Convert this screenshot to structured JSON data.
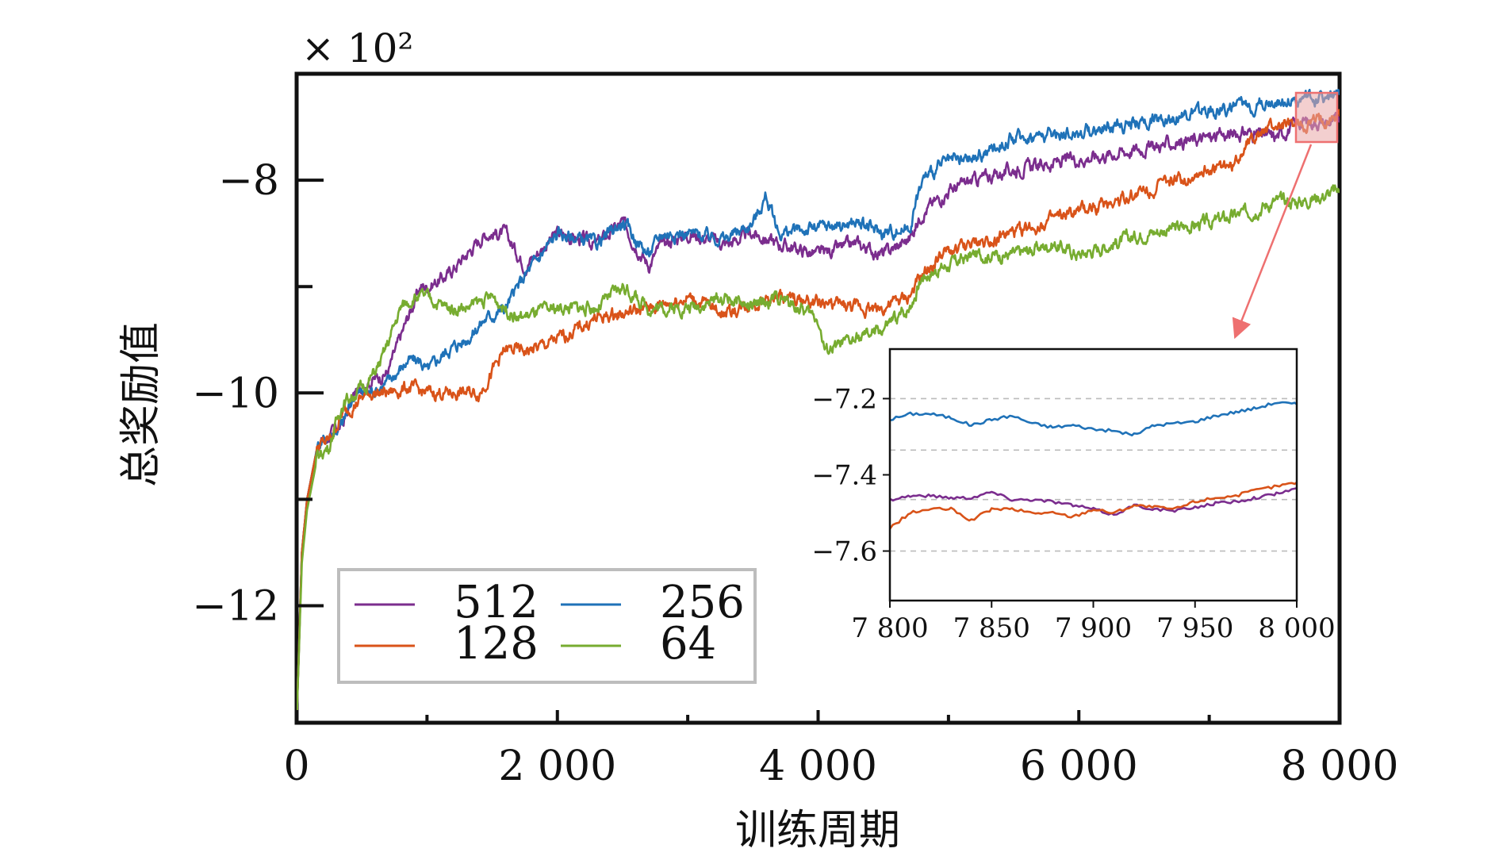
{
  "chart_data": [
    {
      "type": "line",
      "title": "",
      "multiplier_label": "× 10²",
      "xlabel": "训练周期",
      "ylabel": "总奖励值",
      "xlim": [
        0,
        8000
      ],
      "ylim": [
        -13.1,
        -7.0
      ],
      "xticks": [
        0,
        2000,
        4000,
        6000,
        8000
      ],
      "xtick_labels": [
        "0",
        "2 000",
        "4 000",
        "6 000",
        "8 000"
      ],
      "minor_xticks": [
        1000,
        3000,
        5000,
        7000
      ],
      "yticks": [
        -8,
        -10,
        -12
      ],
      "ytick_labels": [
        "−8",
        "−10",
        "−12"
      ],
      "minor_yticks": [
        -9,
        -11
      ],
      "grid": false,
      "legend_placement": "bottom-left",
      "legend_columns": 2,
      "series": [
        {
          "name": "512",
          "color": "#7B2D8E",
          "x": [
            0,
            40,
            80,
            160,
            250,
            350,
            450,
            550,
            700,
            850,
            950,
            1000,
            1150,
            1300,
            1450,
            1600,
            1750,
            2000,
            2300,
            2500,
            2700,
            2800,
            3000,
            3300,
            3500,
            3700,
            4000,
            4300,
            4500,
            4700,
            4800,
            5000,
            5200,
            5500,
            6000,
            6500,
            7000,
            7300,
            7500,
            7700,
            8000
          ],
          "y": [
            -13.1,
            -11.5,
            -11.0,
            -10.5,
            -10.4,
            -10.3,
            -10.0,
            -9.9,
            -9.8,
            -9.3,
            -9.0,
            -9.0,
            -8.9,
            -8.7,
            -8.5,
            -8.5,
            -8.8,
            -8.5,
            -8.6,
            -8.4,
            -8.8,
            -8.6,
            -8.5,
            -8.6,
            -8.5,
            -8.6,
            -8.7,
            -8.6,
            -8.7,
            -8.55,
            -8.3,
            -8.1,
            -8.0,
            -7.9,
            -7.8,
            -7.7,
            -7.6,
            -7.55,
            -7.6,
            -7.45,
            -7.45
          ]
        },
        {
          "name": "256",
          "color": "#1F72B8",
          "x": [
            0,
            40,
            80,
            160,
            250,
            350,
            450,
            550,
            700,
            850,
            950,
            1000,
            1150,
            1300,
            1450,
            1600,
            1750,
            2000,
            2300,
            2500,
            2700,
            2800,
            3000,
            3300,
            3500,
            3600,
            3700,
            4000,
            4300,
            4500,
            4700,
            4800,
            4950,
            5200,
            5500,
            6000,
            6500,
            7000,
            7300,
            7500,
            7700,
            8000
          ],
          "y": [
            -13.1,
            -11.5,
            -11.0,
            -10.5,
            -10.4,
            -10.3,
            -10.0,
            -10.0,
            -9.9,
            -9.7,
            -9.7,
            -9.8,
            -9.6,
            -9.5,
            -9.3,
            -9.2,
            -8.9,
            -8.5,
            -8.6,
            -8.4,
            -8.7,
            -8.5,
            -8.5,
            -8.55,
            -8.4,
            -8.15,
            -8.5,
            -8.45,
            -8.4,
            -8.5,
            -8.45,
            -8.0,
            -7.85,
            -7.8,
            -7.6,
            -7.55,
            -7.45,
            -7.35,
            -7.3,
            -7.25,
            -7.25,
            -7.2
          ]
        },
        {
          "name": "128",
          "color": "#D95319",
          "x": [
            0,
            40,
            80,
            160,
            250,
            350,
            450,
            550,
            700,
            850,
            1000,
            1200,
            1400,
            1500,
            1600,
            1800,
            2000,
            2300,
            2500,
            2700,
            3000,
            3300,
            3500,
            3700,
            4000,
            4300,
            4500,
            4700,
            4800,
            4950,
            5200,
            5500,
            6000,
            6500,
            7000,
            7200,
            7300,
            7500,
            7700,
            8000
          ],
          "y": [
            -13.1,
            -11.5,
            -11.0,
            -10.5,
            -10.45,
            -10.2,
            -10.1,
            -10.0,
            -10.0,
            -9.95,
            -10.0,
            -10.0,
            -10.0,
            -9.8,
            -9.6,
            -9.6,
            -9.5,
            -9.3,
            -9.25,
            -9.2,
            -9.1,
            -9.25,
            -9.15,
            -9.1,
            -9.15,
            -9.2,
            -9.2,
            -9.1,
            -8.9,
            -8.7,
            -8.6,
            -8.5,
            -8.3,
            -8.1,
            -7.9,
            -7.85,
            -7.6,
            -7.5,
            -7.5,
            -7.4
          ]
        },
        {
          "name": "64",
          "color": "#77AC30",
          "x": [
            0,
            40,
            80,
            160,
            250,
            350,
            450,
            550,
            650,
            800,
            900,
            1000,
            1150,
            1300,
            1500,
            1700,
            2000,
            2300,
            2500,
            2700,
            3000,
            3300,
            3500,
            3700,
            4000,
            4050,
            4300,
            4500,
            4700,
            4800,
            5000,
            5200,
            5500,
            5800,
            6000,
            6500,
            7000,
            7300,
            7500,
            7700,
            8000
          ],
          "y": [
            -13.1,
            -11.6,
            -11.1,
            -10.6,
            -10.5,
            -10.1,
            -10.0,
            -9.9,
            -9.7,
            -9.2,
            -9.1,
            -9.1,
            -9.2,
            -9.2,
            -9.1,
            -9.3,
            -9.2,
            -9.2,
            -9.0,
            -9.2,
            -9.2,
            -9.1,
            -9.2,
            -9.1,
            -9.3,
            -9.6,
            -9.5,
            -9.4,
            -9.2,
            -8.9,
            -8.8,
            -8.7,
            -8.7,
            -8.6,
            -8.7,
            -8.5,
            -8.4,
            -8.3,
            -8.2,
            -8.2,
            -8.1
          ]
        }
      ]
    },
    {
      "type": "line",
      "title": "",
      "xlabel": "",
      "ylabel": "",
      "xlim": [
        7800,
        8000
      ],
      "ylim": [
        -7.73,
        -7.07
      ],
      "xticks": [
        7800,
        7850,
        7900,
        7950,
        8000
      ],
      "xtick_labels": [
        "7 800",
        "7 850",
        "7 900",
        "7 950",
        "8 000"
      ],
      "yticks": [
        -7.2,
        -7.4,
        -7.6
      ],
      "ytick_labels": [
        "−7.2",
        "−7.4",
        "−7.6"
      ],
      "grid_lines_y": [
        -7.2,
        -7.335,
        -7.465,
        -7.6
      ],
      "grid": true,
      "series": [
        {
          "name": "256",
          "color": "#1F72B8",
          "x": [
            7800,
            7810,
            7820,
            7830,
            7840,
            7850,
            7860,
            7870,
            7880,
            7890,
            7900,
            7910,
            7920,
            7930,
            7940,
            7950,
            7960,
            7970,
            7980,
            7990,
            8000
          ],
          "y": [
            -7.255,
            -7.24,
            -7.24,
            -7.25,
            -7.27,
            -7.255,
            -7.245,
            -7.265,
            -7.275,
            -7.27,
            -7.28,
            -7.285,
            -7.295,
            -7.27,
            -7.265,
            -7.26,
            -7.245,
            -7.235,
            -7.225,
            -7.21,
            -7.215
          ]
        },
        {
          "name": "512",
          "color": "#7B2D8E",
          "x": [
            7800,
            7810,
            7820,
            7830,
            7840,
            7850,
            7860,
            7870,
            7880,
            7890,
            7900,
            7910,
            7920,
            7930,
            7940,
            7950,
            7960,
            7970,
            7980,
            7990,
            8000
          ],
          "y": [
            -7.465,
            -7.455,
            -7.455,
            -7.46,
            -7.46,
            -7.445,
            -7.465,
            -7.465,
            -7.47,
            -7.48,
            -7.49,
            -7.505,
            -7.48,
            -7.49,
            -7.495,
            -7.485,
            -7.475,
            -7.47,
            -7.46,
            -7.45,
            -7.435
          ]
        },
        {
          "name": "128",
          "color": "#D95319",
          "x": [
            7800,
            7810,
            7820,
            7830,
            7840,
            7850,
            7860,
            7870,
            7880,
            7890,
            7900,
            7910,
            7920,
            7930,
            7940,
            7950,
            7960,
            7970,
            7980,
            7990,
            8000
          ],
          "y": [
            -7.54,
            -7.5,
            -7.49,
            -7.49,
            -7.52,
            -7.49,
            -7.49,
            -7.5,
            -7.5,
            -7.51,
            -7.49,
            -7.5,
            -7.48,
            -7.485,
            -7.49,
            -7.47,
            -7.46,
            -7.455,
            -7.44,
            -7.43,
            -7.42
          ]
        }
      ]
    }
  ]
}
